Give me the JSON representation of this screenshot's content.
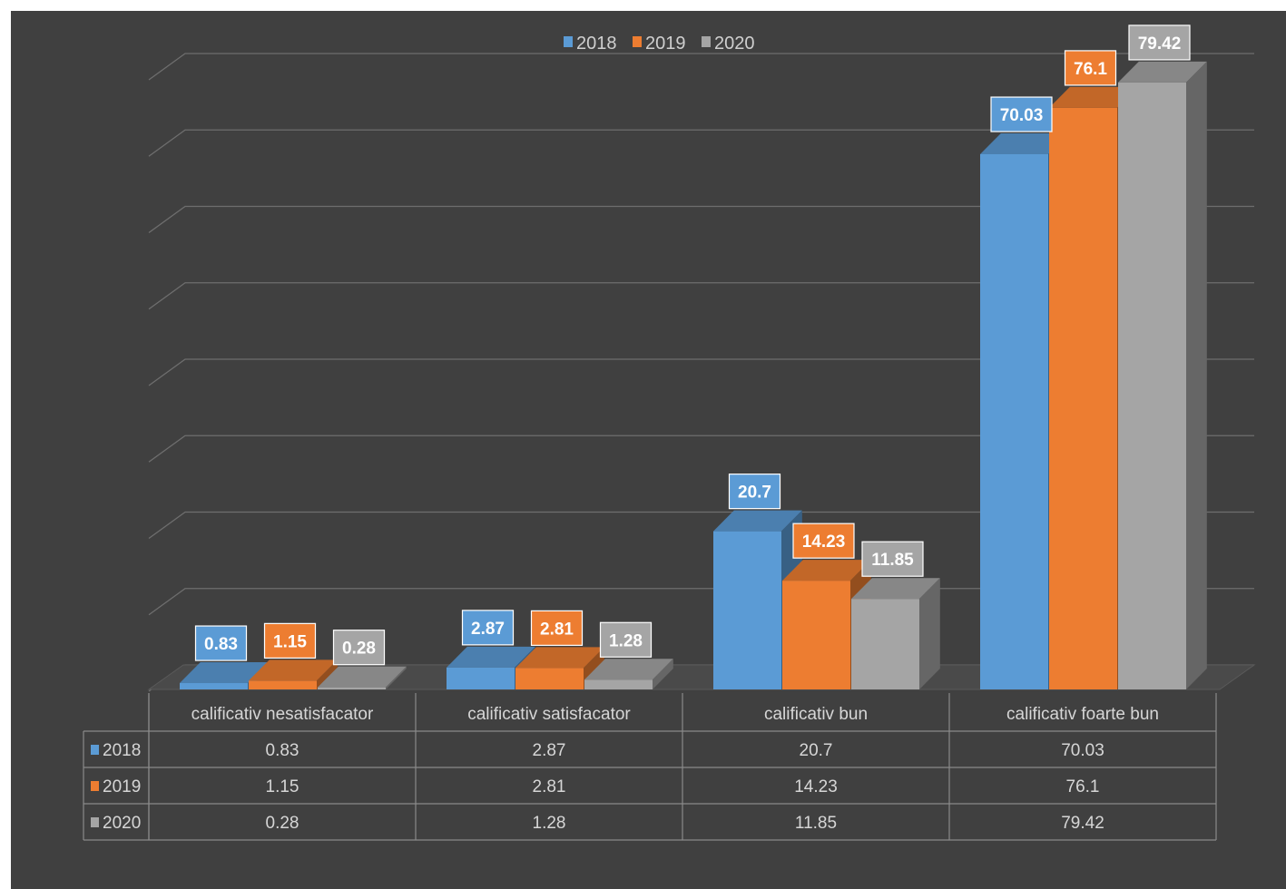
{
  "chart_data": {
    "type": "bar",
    "title": "",
    "xlabel": "",
    "ylabel": "",
    "ylim": [
      0,
      80
    ],
    "grid": true,
    "legend_position": "top-center",
    "categories": [
      "calificativ nesatisfacator",
      "calificativ satisfacator",
      "calificativ bun",
      "calificativ foarte bun"
    ],
    "series": [
      {
        "name": "2018",
        "color": "#5b9bd5",
        "values": [
          0.83,
          2.87,
          20.7,
          70.03
        ]
      },
      {
        "name": "2019",
        "color": "#ed7d31",
        "values": [
          1.15,
          2.81,
          14.23,
          76.1
        ]
      },
      {
        "name": "2020",
        "color": "#a5a5a5",
        "values": [
          0.28,
          1.28,
          11.85,
          79.42
        ]
      }
    ],
    "data_labels": [
      [
        "0.83",
        "2.87",
        "20.7",
        "70.03"
      ],
      [
        "1.15",
        "2.81",
        "14.23",
        "76.1"
      ],
      [
        "0.28",
        "1.28",
        "11.85",
        "79.42"
      ]
    ],
    "data_table": {
      "rows": [
        {
          "label": "2018",
          "cells": [
            "0.83",
            "2.87",
            "20.7",
            "70.03"
          ]
        },
        {
          "label": "2019",
          "cells": [
            "1.15",
            "2.81",
            "14.23",
            "76.1"
          ]
        },
        {
          "label": "2020",
          "cells": [
            "0.28",
            "1.28",
            "11.85",
            "79.42"
          ]
        }
      ]
    }
  }
}
